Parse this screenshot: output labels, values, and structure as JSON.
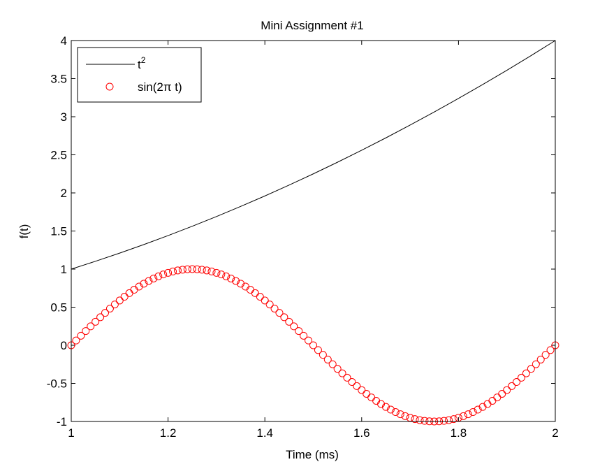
{
  "chart_data": {
    "type": "line",
    "title": "Mini Assignment #1",
    "xlabel": "Time (ms)",
    "ylabel": "f(t)",
    "xlim": [
      1,
      2
    ],
    "ylim": [
      -1,
      4
    ],
    "xticks": [
      1,
      1.2,
      1.4,
      1.6,
      1.8,
      2
    ],
    "xtick_labels": [
      "1",
      "1.2",
      "1.4",
      "1.6",
      "1.8",
      "2"
    ],
    "yticks": [
      -1,
      -0.5,
      0,
      0.5,
      1,
      1.5,
      2,
      2.5,
      3,
      3.5,
      4
    ],
    "ytick_labels": [
      "-1",
      "-0.5",
      "0",
      "0.5",
      "1",
      "1.5",
      "2",
      "2.5",
      "3",
      "3.5",
      "4"
    ],
    "grid": false,
    "legend_position": "top-left",
    "series": [
      {
        "name_base": "t",
        "name_sup": "2",
        "style": "line",
        "color": "#000000",
        "x": [
          1,
          1.05,
          1.1,
          1.15,
          1.2,
          1.25,
          1.3,
          1.35,
          1.4,
          1.45,
          1.5,
          1.55,
          1.6,
          1.65,
          1.7,
          1.75,
          1.8,
          1.85,
          1.9,
          1.95,
          2
        ],
        "y": [
          1,
          1.1025,
          1.21,
          1.3225,
          1.44,
          1.5625,
          1.69,
          1.8225,
          1.96,
          2.1025,
          2.25,
          2.4025,
          2.56,
          2.7225,
          2.89,
          3.0625,
          3.24,
          3.4225,
          3.61,
          3.8025,
          4
        ]
      },
      {
        "name": "sin(2π t)",
        "style": "markers",
        "marker": "circle",
        "color": "#ff0000",
        "x": [
          1,
          1.01,
          1.02,
          1.03,
          1.04,
          1.05,
          1.06,
          1.07,
          1.08,
          1.09,
          1.1,
          1.11,
          1.12,
          1.13,
          1.14,
          1.15,
          1.16,
          1.17,
          1.18,
          1.19,
          1.2,
          1.21,
          1.22,
          1.23,
          1.24,
          1.25,
          1.26,
          1.27,
          1.28,
          1.29,
          1.3,
          1.31,
          1.32,
          1.33,
          1.34,
          1.35,
          1.36,
          1.37,
          1.38,
          1.39,
          1.4,
          1.41,
          1.42,
          1.43,
          1.44,
          1.45,
          1.46,
          1.47,
          1.48,
          1.49,
          1.5,
          1.51,
          1.52,
          1.53,
          1.54,
          1.55,
          1.56,
          1.57,
          1.58,
          1.59,
          1.6,
          1.61,
          1.62,
          1.63,
          1.64,
          1.65,
          1.66,
          1.67,
          1.68,
          1.69,
          1.7,
          1.71,
          1.72,
          1.73,
          1.74,
          1.75,
          1.76,
          1.77,
          1.78,
          1.79,
          1.8,
          1.81,
          1.82,
          1.83,
          1.84,
          1.85,
          1.86,
          1.87,
          1.88,
          1.89,
          1.9,
          1.91,
          1.92,
          1.93,
          1.94,
          1.95,
          1.96,
          1.97,
          1.98,
          1.99,
          2
        ],
        "y": [
          0,
          0.0628,
          0.1253,
          0.1874,
          0.2487,
          0.309,
          0.3681,
          0.4258,
          0.4818,
          0.5358,
          0.5878,
          0.6374,
          0.6845,
          0.729,
          0.7705,
          0.809,
          0.8443,
          0.8763,
          0.9048,
          0.9298,
          0.9511,
          0.9686,
          0.9823,
          0.9921,
          0.998,
          1,
          0.998,
          0.9921,
          0.9823,
          0.9686,
          0.9511,
          0.9298,
          0.9048,
          0.8763,
          0.8443,
          0.809,
          0.7705,
          0.729,
          0.6845,
          0.6374,
          0.5878,
          0.5358,
          0.4818,
          0.4258,
          0.3681,
          0.309,
          0.2487,
          0.1874,
          0.1253,
          0.0628,
          0,
          -0.0628,
          -0.1253,
          -0.1874,
          -0.2487,
          -0.309,
          -0.3681,
          -0.4258,
          -0.4818,
          -0.5358,
          -0.5878,
          -0.6374,
          -0.6845,
          -0.729,
          -0.7705,
          -0.809,
          -0.8443,
          -0.8763,
          -0.9048,
          -0.9298,
          -0.9511,
          -0.9686,
          -0.9823,
          -0.9921,
          -0.998,
          -1,
          -0.998,
          -0.9921,
          -0.9823,
          -0.9686,
          -0.9511,
          -0.9298,
          -0.9048,
          -0.8763,
          -0.8443,
          -0.809,
          -0.7705,
          -0.729,
          -0.6845,
          -0.6374,
          -0.5878,
          -0.5358,
          -0.4818,
          -0.4258,
          -0.3681,
          -0.309,
          -0.2487,
          -0.1874,
          -0.1253,
          -0.0628,
          0
        ]
      }
    ]
  }
}
